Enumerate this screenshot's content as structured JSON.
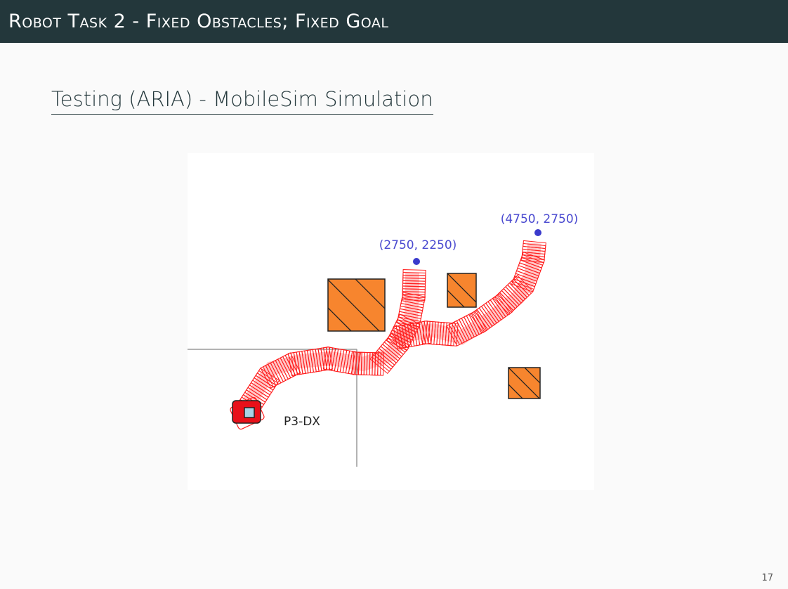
{
  "header": {
    "title": "Robot Task 2 - Fixed Obstacles; Fixed Goal"
  },
  "subtitle": "Testing (ARIA) - MobileSim Simulation",
  "figure": {
    "robot_label": "P3-DX",
    "waypoints": [
      {
        "label": "(2750, 2250)"
      },
      {
        "label": "(4750, 2750)"
      }
    ],
    "colors": {
      "trail": "#ff1e1e",
      "obstacle": "#f7852e",
      "waypoint": "#3a3acc",
      "robot": "#e8101a",
      "robot_core": "#a8d3e6"
    }
  },
  "page_number": "17"
}
